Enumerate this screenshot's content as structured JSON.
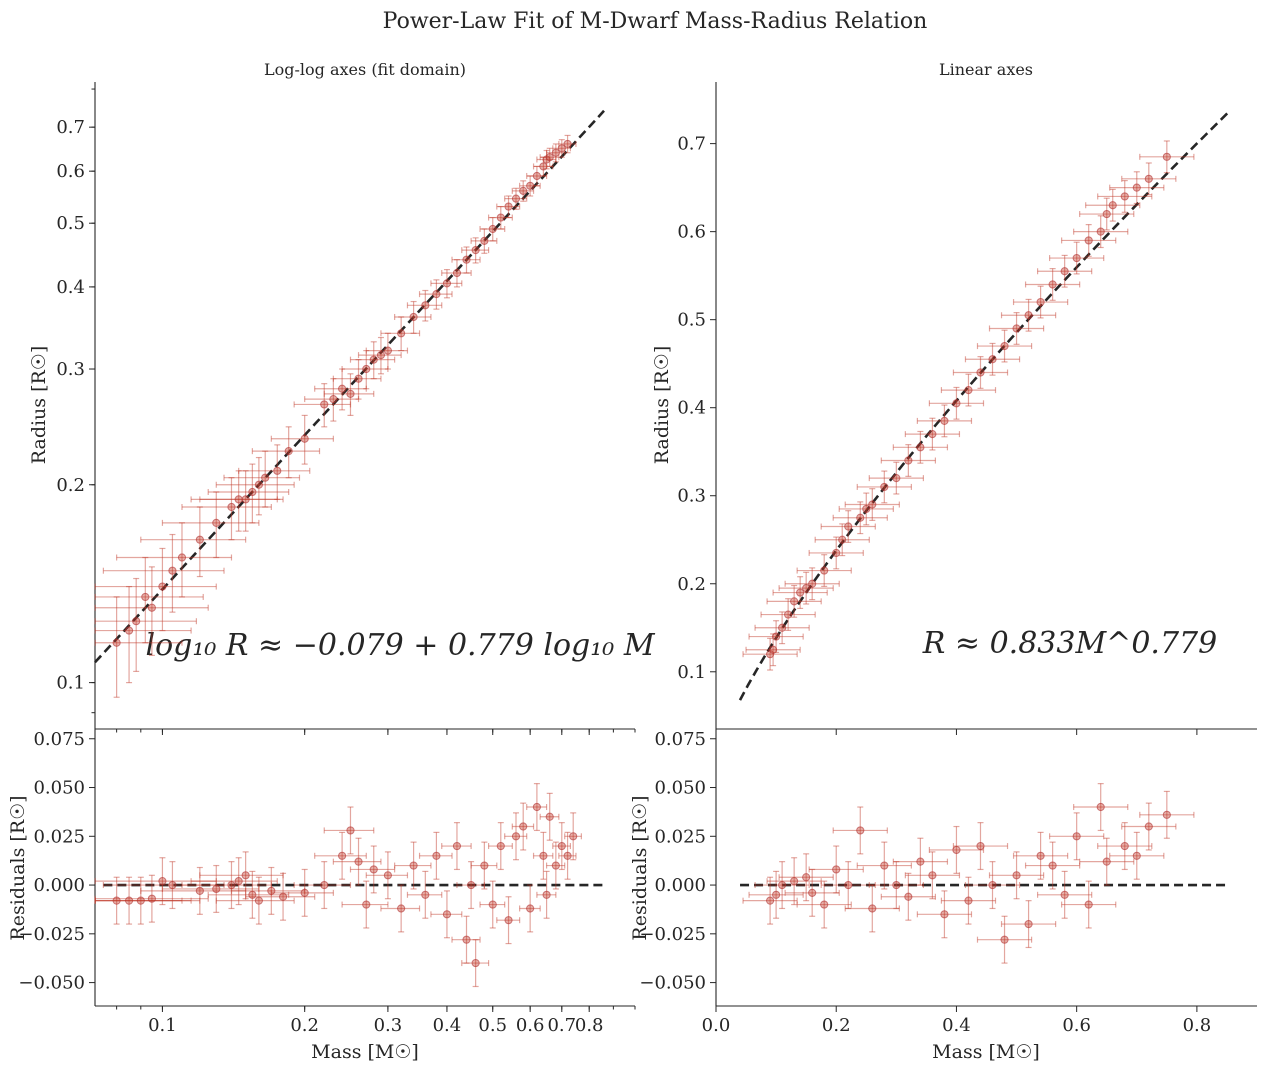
{
  "figure": {
    "suptitle": "Power-Law Fit of M-Dwarf Mass-Radius Relation",
    "point_color": "#c0392b",
    "line_color": "#262626"
  },
  "panels": {
    "top_left": {
      "title": "Log-log axes (fit domain)",
      "ylabel": "Radius [R☉]",
      "equation": "log₁₀ R ≈ −0.079 + 0.779 log₁₀ M"
    },
    "top_right": {
      "title": "Linear axes",
      "ylabel": "Radius [R☉]",
      "equation": "R ≈ 0.833M^0.779"
    },
    "bottom_left": {
      "ylabel": "Residuals [R☉]",
      "xlabel": "Mass [M☉]"
    },
    "bottom_right": {
      "ylabel": "Residuals [R☉]",
      "xlabel": "Mass [M☉]"
    }
  },
  "chart_data": [
    {
      "type": "scatter",
      "panel": "top-left",
      "title": "Log-log axes (fit domain)",
      "xlabel": "",
      "ylabel": "Radius [R☉]",
      "xscale": "log",
      "yscale": "log",
      "xlim": [
        0.072,
        1.0
      ],
      "ylim": [
        0.085,
        0.82
      ],
      "xticks": [
        0.1,
        0.2,
        0.3,
        0.4,
        0.5,
        0.6,
        0.7,
        0.8
      ],
      "xtick_labels": [],
      "yticks": [
        0.1,
        0.2,
        0.3,
        0.4,
        0.5,
        0.6,
        0.7
      ],
      "ytick_labels": [
        "0.1",
        "0.2",
        "0.3",
        "0.4",
        "0.5",
        "0.6",
        "0.7"
      ],
      "fit": {
        "intercept_log10": -0.079,
        "slope": 0.779,
        "x_range": [
          0.072,
          0.86
        ],
        "style": "dashed"
      },
      "annotation": "log₁₀ R ≈ −0.079 + 0.779 log₁₀ M",
      "series": [
        {
          "points": [
            [
              0.08,
              0.115
            ],
            [
              0.085,
              0.12
            ],
            [
              0.088,
              0.124
            ],
            [
              0.092,
              0.135
            ],
            [
              0.095,
              0.13
            ],
            [
              0.1,
              0.14
            ],
            [
              0.105,
              0.148
            ],
            [
              0.11,
              0.155
            ],
            [
              0.12,
              0.165
            ],
            [
              0.13,
              0.175
            ],
            [
              0.14,
              0.185
            ],
            [
              0.145,
              0.19
            ],
            [
              0.15,
              0.19
            ],
            [
              0.155,
              0.195
            ],
            [
              0.16,
              0.2
            ],
            [
              0.165,
              0.205
            ],
            [
              0.175,
              0.21
            ],
            [
              0.185,
              0.225
            ],
            [
              0.2,
              0.235
            ],
            [
              0.22,
              0.265
            ],
            [
              0.23,
              0.27
            ],
            [
              0.24,
              0.28
            ],
            [
              0.25,
              0.275
            ],
            [
              0.26,
              0.29
            ],
            [
              0.27,
              0.3
            ],
            [
              0.28,
              0.31
            ],
            [
              0.29,
              0.315
            ],
            [
              0.3,
              0.32
            ],
            [
              0.32,
              0.34
            ],
            [
              0.34,
              0.36
            ],
            [
              0.36,
              0.375
            ],
            [
              0.38,
              0.39
            ],
            [
              0.4,
              0.405
            ],
            [
              0.42,
              0.42
            ],
            [
              0.44,
              0.44
            ],
            [
              0.46,
              0.455
            ],
            [
              0.48,
              0.47
            ],
            [
              0.5,
              0.49
            ],
            [
              0.52,
              0.51
            ],
            [
              0.54,
              0.53
            ],
            [
              0.56,
              0.545
            ],
            [
              0.58,
              0.56
            ],
            [
              0.6,
              0.57
            ],
            [
              0.62,
              0.59
            ],
            [
              0.64,
              0.61
            ],
            [
              0.65,
              0.625
            ],
            [
              0.66,
              0.63
            ],
            [
              0.68,
              0.64
            ],
            [
              0.7,
              0.65
            ],
            [
              0.72,
              0.66
            ]
          ],
          "x_err": 0.03,
          "y_err": 0.02
        }
      ]
    },
    {
      "type": "scatter",
      "panel": "top-right",
      "title": "Linear axes",
      "xlabel": "",
      "ylabel": "Radius [R☉]",
      "xlim": [
        0.0,
        0.9
      ],
      "ylim": [
        0.035,
        0.77
      ],
      "xticks": [
        0.0,
        0.2,
        0.4,
        0.6,
        0.8
      ],
      "xtick_labels": [],
      "yticks": [
        0.1,
        0.2,
        0.3,
        0.4,
        0.5,
        0.6,
        0.7
      ],
      "ytick_labels": [
        "0.1",
        "0.2",
        "0.3",
        "0.4",
        "0.5",
        "0.6",
        "0.7"
      ],
      "fit": {
        "coefficient": 0.833,
        "exponent": 0.779,
        "x_range": [
          0.04,
          0.855
        ],
        "style": "dashed"
      },
      "annotation": "R ≈ 0.833M^0.779",
      "series": [
        {
          "points": [
            [
              0.09,
              0.12
            ],
            [
              0.095,
              0.125
            ],
            [
              0.1,
              0.14
            ],
            [
              0.11,
              0.15
            ],
            [
              0.12,
              0.165
            ],
            [
              0.13,
              0.18
            ],
            [
              0.14,
              0.19
            ],
            [
              0.15,
              0.195
            ],
            [
              0.16,
              0.2
            ],
            [
              0.18,
              0.215
            ],
            [
              0.2,
              0.235
            ],
            [
              0.21,
              0.25
            ],
            [
              0.22,
              0.265
            ],
            [
              0.24,
              0.275
            ],
            [
              0.25,
              0.285
            ],
            [
              0.26,
              0.29
            ],
            [
              0.28,
              0.31
            ],
            [
              0.3,
              0.32
            ],
            [
              0.32,
              0.34
            ],
            [
              0.34,
              0.355
            ],
            [
              0.36,
              0.37
            ],
            [
              0.38,
              0.385
            ],
            [
              0.4,
              0.405
            ],
            [
              0.42,
              0.42
            ],
            [
              0.44,
              0.44
            ],
            [
              0.46,
              0.455
            ],
            [
              0.48,
              0.47
            ],
            [
              0.5,
              0.49
            ],
            [
              0.52,
              0.505
            ],
            [
              0.54,
              0.52
            ],
            [
              0.56,
              0.54
            ],
            [
              0.58,
              0.555
            ],
            [
              0.6,
              0.57
            ],
            [
              0.62,
              0.59
            ],
            [
              0.64,
              0.6
            ],
            [
              0.65,
              0.62
            ],
            [
              0.66,
              0.63
            ],
            [
              0.68,
              0.64
            ],
            [
              0.7,
              0.65
            ],
            [
              0.72,
              0.66
            ],
            [
              0.75,
              0.685
            ]
          ],
          "x_err": 0.045,
          "y_err": 0.018
        }
      ]
    },
    {
      "type": "scatter",
      "panel": "bottom-left",
      "xlabel": "Mass [M☉]",
      "ylabel": "Residuals [R☉]",
      "xscale": "log",
      "xlim": [
        0.072,
        1.0
      ],
      "ylim": [
        -0.062,
        0.08
      ],
      "xticks": [
        0.1,
        0.2,
        0.3,
        0.4,
        0.5,
        0.6,
        0.7,
        0.8
      ],
      "xtick_labels": [
        "0.1",
        "0.2",
        "0.3",
        "0.4",
        "0.5",
        "0.6",
        "0.7",
        "0.8"
      ],
      "yticks": [
        -0.05,
        -0.025,
        0.0,
        0.025,
        0.05,
        0.075
      ],
      "ytick_labels": [
        "−0.050",
        "−0.025",
        "0.000",
        "0.025",
        "0.050",
        "0.075"
      ],
      "zero_line": {
        "y": 0.0,
        "x_range": [
          0.075,
          0.86
        ],
        "style": "dashed"
      },
      "series": [
        {
          "points": [
            [
              0.08,
              -0.008
            ],
            [
              0.085,
              -0.008
            ],
            [
              0.09,
              -0.008
            ],
            [
              0.095,
              -0.007
            ],
            [
              0.1,
              0.002
            ],
            [
              0.105,
              0.0
            ],
            [
              0.12,
              -0.003
            ],
            [
              0.13,
              -0.002
            ],
            [
              0.14,
              0.0
            ],
            [
              0.145,
              0.002
            ],
            [
              0.15,
              0.005
            ],
            [
              0.155,
              -0.005
            ],
            [
              0.16,
              -0.008
            ],
            [
              0.17,
              -0.003
            ],
            [
              0.18,
              -0.006
            ],
            [
              0.2,
              -0.004
            ],
            [
              0.22,
              0.0
            ],
            [
              0.24,
              0.015
            ],
            [
              0.25,
              0.028
            ],
            [
              0.26,
              0.012
            ],
            [
              0.27,
              -0.01
            ],
            [
              0.28,
              0.008
            ],
            [
              0.3,
              0.005
            ],
            [
              0.32,
              -0.012
            ],
            [
              0.34,
              0.01
            ],
            [
              0.36,
              -0.005
            ],
            [
              0.38,
              0.015
            ],
            [
              0.4,
              -0.015
            ],
            [
              0.42,
              0.02
            ],
            [
              0.44,
              -0.028
            ],
            [
              0.45,
              0.0
            ],
            [
              0.46,
              -0.04
            ],
            [
              0.48,
              0.01
            ],
            [
              0.5,
              -0.01
            ],
            [
              0.52,
              0.02
            ],
            [
              0.54,
              -0.018
            ],
            [
              0.56,
              0.025
            ],
            [
              0.58,
              0.03
            ],
            [
              0.6,
              -0.012
            ],
            [
              0.62,
              0.04
            ],
            [
              0.64,
              0.015
            ],
            [
              0.65,
              -0.005
            ],
            [
              0.66,
              0.035
            ],
            [
              0.68,
              0.01
            ],
            [
              0.7,
              0.02
            ],
            [
              0.72,
              0.015
            ],
            [
              0.74,
              0.025
            ]
          ],
          "y_err": 0.012,
          "x_err": 0.03
        }
      ]
    },
    {
      "type": "scatter",
      "panel": "bottom-right",
      "xlabel": "Mass [M☉]",
      "ylabel": "Residuals [R☉]",
      "xlim": [
        0.0,
        0.9
      ],
      "ylim": [
        -0.062,
        0.08
      ],
      "xticks": [
        0.0,
        0.2,
        0.4,
        0.6,
        0.8
      ],
      "xtick_labels": [
        "0.0",
        "0.2",
        "0.4",
        "0.6",
        "0.8"
      ],
      "yticks": [
        -0.05,
        -0.025,
        0.0,
        0.025,
        0.05,
        0.075
      ],
      "ytick_labels": [
        "−0.050",
        "−0.025",
        "0.000",
        "0.025",
        "0.050",
        "0.075"
      ],
      "zero_line": {
        "y": 0.0,
        "x_range": [
          0.04,
          0.855
        ],
        "style": "dashed"
      },
      "series": [
        {
          "points": [
            [
              0.09,
              -0.008
            ],
            [
              0.1,
              -0.005
            ],
            [
              0.11,
              0.0
            ],
            [
              0.13,
              0.002
            ],
            [
              0.15,
              0.004
            ],
            [
              0.16,
              -0.004
            ],
            [
              0.18,
              -0.01
            ],
            [
              0.2,
              0.008
            ],
            [
              0.22,
              0.0
            ],
            [
              0.24,
              0.028
            ],
            [
              0.26,
              -0.012
            ],
            [
              0.28,
              0.01
            ],
            [
              0.3,
              0.0
            ],
            [
              0.32,
              -0.006
            ],
            [
              0.34,
              0.012
            ],
            [
              0.36,
              0.005
            ],
            [
              0.38,
              -0.015
            ],
            [
              0.4,
              0.018
            ],
            [
              0.42,
              -0.008
            ],
            [
              0.44,
              0.02
            ],
            [
              0.46,
              0.0
            ],
            [
              0.48,
              -0.028
            ],
            [
              0.5,
              0.005
            ],
            [
              0.52,
              -0.02
            ],
            [
              0.54,
              0.015
            ],
            [
              0.56,
              0.01
            ],
            [
              0.58,
              -0.005
            ],
            [
              0.6,
              0.025
            ],
            [
              0.62,
              -0.01
            ],
            [
              0.64,
              0.04
            ],
            [
              0.65,
              0.012
            ],
            [
              0.68,
              0.02
            ],
            [
              0.7,
              0.015
            ],
            [
              0.72,
              0.03
            ],
            [
              0.75,
              0.036
            ]
          ],
          "y_err": 0.012,
          "x_err": 0.045
        }
      ]
    }
  ]
}
